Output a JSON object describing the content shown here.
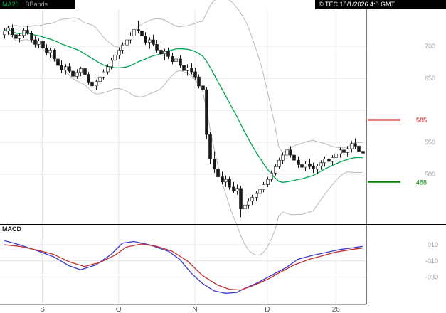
{
  "header": {
    "legend": [
      {
        "label": "MA20",
        "color": "#00b050"
      },
      {
        "label": "BBands",
        "color": "#9a9a9a"
      }
    ],
    "copyright": "© TEC 18/1/2026 4:0 GMT"
  },
  "chart_data": [
    {
      "type": "candlestick",
      "name": "price",
      "overlays": [
        "MA20",
        "BBands"
      ],
      "x_axis": {
        "ticks": [
          {
            "label": "S",
            "index": 10
          },
          {
            "label": "O",
            "index": 30
          },
          {
            "label": "N",
            "index": 50
          },
          {
            "label": "D",
            "index": 69
          },
          {
            "label": "26",
            "index": 87
          }
        ]
      },
      "y_axis": {
        "labels": [
          {
            "text": "700",
            "value": 700
          },
          {
            "text": "650",
            "value": 650
          },
          {
            "text": "550",
            "value": 550
          },
          {
            "text": "500",
            "value": 500
          }
        ],
        "gridlines": [
          700,
          650,
          600,
          550,
          500
        ]
      },
      "levels": [
        {
          "label": "585",
          "value": 585,
          "color": "#cc0000"
        },
        {
          "label": "488",
          "value": 488,
          "color": "#008800"
        }
      ],
      "colors": {
        "ma20": "#00a550",
        "bbands": "#b9b9b9",
        "wick": "#1a1a1a",
        "up": "#ffffff",
        "down": "#1a1a1a"
      },
      "candles": [
        [
          718,
          728,
          712,
          724
        ],
        [
          724,
          732,
          718,
          728
        ],
        [
          728,
          734,
          714,
          718
        ],
        [
          718,
          724,
          708,
          712
        ],
        [
          712,
          720,
          706,
          717
        ],
        [
          717,
          728,
          713,
          725
        ],
        [
          725,
          732,
          718,
          720
        ],
        [
          720,
          724,
          706,
          710
        ],
        [
          710,
          716,
          698,
          703
        ],
        [
          703,
          712,
          697,
          708
        ],
        [
          708,
          710,
          692,
          697
        ],
        [
          697,
          703,
          686,
          690
        ],
        [
          690,
          698,
          682,
          694
        ],
        [
          694,
          696,
          676,
          680
        ],
        [
          680,
          686,
          666,
          670
        ],
        [
          670,
          678,
          658,
          663
        ],
        [
          663,
          672,
          656,
          668
        ],
        [
          668,
          674,
          658,
          661
        ],
        [
          661,
          666,
          648,
          653
        ],
        [
          653,
          664,
          649,
          659
        ],
        [
          659,
          668,
          653,
          665
        ],
        [
          665,
          670,
          652,
          656
        ],
        [
          656,
          660,
          640,
          644
        ],
        [
          644,
          652,
          634,
          638
        ],
        [
          638,
          648,
          632,
          645
        ],
        [
          645,
          656,
          641,
          652
        ],
        [
          652,
          664,
          648,
          660
        ],
        [
          660,
          672,
          656,
          668
        ],
        [
          668,
          682,
          664,
          678
        ],
        [
          678,
          691,
          674,
          686
        ],
        [
          686,
          698,
          680,
          694
        ],
        [
          694,
          706,
          688,
          702
        ],
        [
          702,
          714,
          696,
          710
        ],
        [
          710,
          722,
          704,
          716
        ],
        [
          716,
          730,
          712,
          726
        ],
        [
          726,
          740,
          720,
          724
        ],
        [
          724,
          734,
          712,
          716
        ],
        [
          716,
          722,
          702,
          706
        ],
        [
          706,
          714,
          696,
          710
        ],
        [
          710,
          718,
          700,
          703
        ],
        [
          703,
          710,
          690,
          694
        ],
        [
          694,
          702,
          684,
          688
        ],
        [
          688,
          696,
          678,
          692
        ],
        [
          692,
          698,
          680,
          684
        ],
        [
          684,
          690,
          672,
          676
        ],
        [
          676,
          684,
          668,
          680
        ],
        [
          680,
          686,
          666,
          670
        ],
        [
          670,
          676,
          658,
          662
        ],
        [
          662,
          672,
          654,
          666
        ],
        [
          666,
          674,
          656,
          660
        ],
        [
          660,
          666,
          648,
          652
        ],
        [
          652,
          656,
          634,
          638
        ],
        [
          638,
          642,
          628,
          632
        ],
        [
          632,
          636,
          555,
          562
        ],
        [
          562,
          566,
          516,
          524
        ],
        [
          524,
          536,
          502,
          508
        ],
        [
          508,
          516,
          490,
          496
        ],
        [
          496,
          504,
          484,
          488
        ],
        [
          488,
          498,
          480,
          492
        ],
        [
          492,
          496,
          476,
          480
        ],
        [
          480,
          488,
          470,
          474
        ],
        [
          474,
          484,
          468,
          478
        ],
        [
          478,
          482,
          433,
          446
        ],
        [
          446,
          456,
          440,
          452
        ],
        [
          452,
          462,
          446,
          458
        ],
        [
          458,
          468,
          452,
          464
        ],
        [
          464,
          474,
          458,
          470
        ],
        [
          470,
          480,
          464,
          476
        ],
        [
          476,
          488,
          472,
          484
        ],
        [
          484,
          496,
          480,
          492
        ],
        [
          492,
          506,
          488,
          502
        ],
        [
          502,
          516,
          498,
          512
        ],
        [
          512,
          526,
          508,
          522
        ],
        [
          522,
          534,
          516,
          530
        ],
        [
          530,
          542,
          524,
          538
        ],
        [
          538,
          544,
          526,
          530
        ],
        [
          530,
          536,
          518,
          522
        ],
        [
          522,
          528,
          510,
          515
        ],
        [
          515,
          522,
          506,
          511
        ],
        [
          511,
          520,
          505,
          516
        ],
        [
          516,
          524,
          508,
          512
        ],
        [
          512,
          518,
          502,
          508
        ],
        [
          508,
          516,
          500,
          513
        ],
        [
          513,
          522,
          507,
          518
        ],
        [
          518,
          528,
          512,
          524
        ],
        [
          524,
          532,
          516,
          520
        ],
        [
          520,
          530,
          514,
          526
        ],
        [
          526,
          536,
          520,
          532
        ],
        [
          532,
          542,
          526,
          538
        ],
        [
          538,
          548,
          530,
          534
        ],
        [
          534,
          544,
          528,
          540
        ],
        [
          540,
          552,
          534,
          548
        ],
        [
          548,
          556,
          540,
          544
        ],
        [
          544,
          550,
          532,
          536
        ],
        [
          536,
          544,
          528,
          533
        ]
      ]
    },
    {
      "type": "line",
      "name": "MACD",
      "y_axis": {
        "labels": [
          {
            "text": "010",
            "value": 0.1
          },
          {
            "text": "-010",
            "value": -0.1
          },
          {
            "text": "-030",
            "value": -0.3
          }
        ]
      },
      "series": [
        {
          "name": "macd",
          "color": "#3a3ad0",
          "points": [
            [
              0,
              0.15
            ],
            [
              4,
              0.1
            ],
            [
              9,
              0.02
            ],
            [
              13,
              -0.05
            ],
            [
              17,
              -0.16
            ],
            [
              20,
              -0.21
            ],
            [
              24,
              -0.15
            ],
            [
              28,
              -0.02
            ],
            [
              31,
              0.12
            ],
            [
              34,
              0.14
            ],
            [
              38,
              0.1
            ],
            [
              43,
              0.02
            ],
            [
              46,
              -0.08
            ],
            [
              49,
              -0.25
            ],
            [
              52,
              -0.38
            ],
            [
              55,
              -0.47
            ],
            [
              58,
              -0.5
            ],
            [
              61,
              -0.49
            ],
            [
              63,
              -0.44
            ],
            [
              66,
              -0.38
            ],
            [
              70,
              -0.28
            ],
            [
              74,
              -0.18
            ],
            [
              77,
              -0.08
            ],
            [
              81,
              -0.03
            ],
            [
              85,
              0.01
            ],
            [
              88,
              0.04
            ],
            [
              91,
              0.06
            ],
            [
              94,
              0.08
            ]
          ]
        },
        {
          "name": "signal",
          "color": "#c03030",
          "points": [
            [
              0,
              0.1
            ],
            [
              4,
              0.08
            ],
            [
              9,
              0.03
            ],
            [
              13,
              -0.02
            ],
            [
              17,
              -0.11
            ],
            [
              21,
              -0.17
            ],
            [
              25,
              -0.12
            ],
            [
              29,
              -0.03
            ],
            [
              32,
              0.07
            ],
            [
              36,
              0.11
            ],
            [
              40,
              0.08
            ],
            [
              44,
              0.02
            ],
            [
              48,
              -0.1
            ],
            [
              52,
              -0.28
            ],
            [
              56,
              -0.4
            ],
            [
              59,
              -0.45
            ],
            [
              62,
              -0.46
            ],
            [
              65,
              -0.41
            ],
            [
              69,
              -0.33
            ],
            [
              72,
              -0.25
            ],
            [
              76,
              -0.15
            ],
            [
              80,
              -0.08
            ],
            [
              84,
              -0.03
            ],
            [
              87,
              0.01
            ],
            [
              91,
              0.04
            ],
            [
              94,
              0.06
            ]
          ]
        }
      ]
    }
  ]
}
